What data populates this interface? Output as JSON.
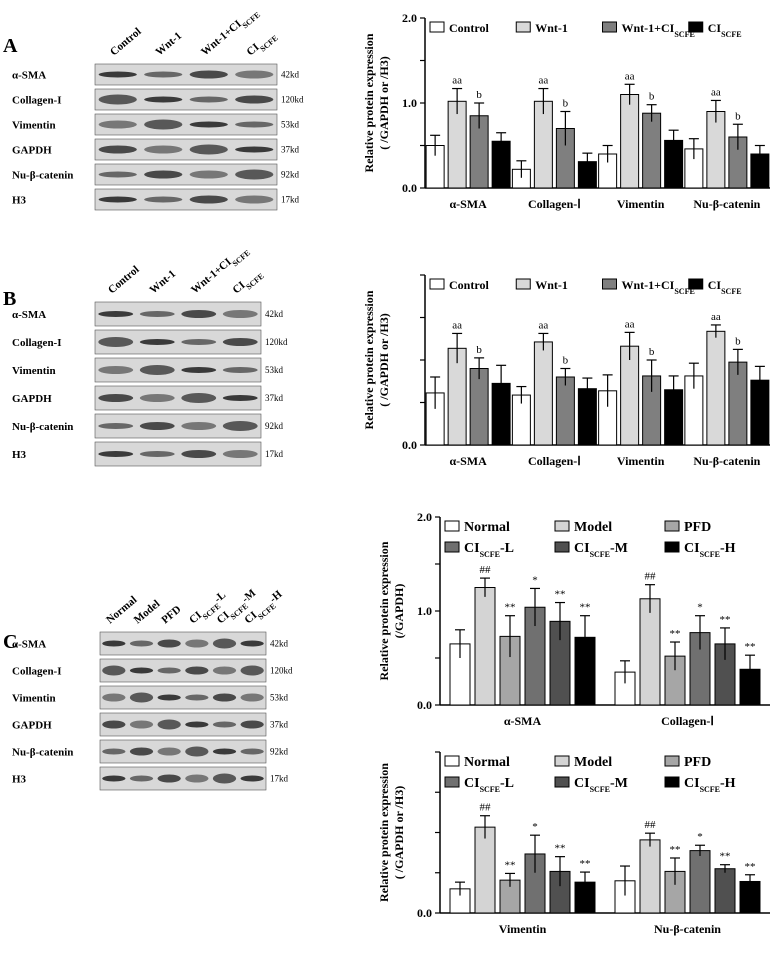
{
  "panels": [
    {
      "label": "A",
      "lanes": [
        "Control",
        "Wnt-1",
        {
          "text": "Wnt-1+CI",
          "sub": "SCFE"
        },
        {
          "text": "CI",
          "sub": "SCFE"
        }
      ],
      "rows": [
        {
          "name": "α-SMA",
          "size": "42kd"
        },
        {
          "name": "Collagen-I",
          "size": "120kd"
        },
        {
          "name": "Vimentin",
          "size": "53kd"
        },
        {
          "name": "GAPDH",
          "size": "37kd"
        },
        {
          "name": "Nu-β-catenin",
          "size": "92kd"
        },
        {
          "name": "H3",
          "size": "17kd"
        }
      ]
    },
    {
      "label": "B",
      "lanes": [
        "Control",
        "Wnt-1",
        {
          "text": "Wnt-1+CI",
          "sub": "SCFE"
        },
        {
          "text": "CI",
          "sub": "SCFE"
        }
      ],
      "rows": [
        {
          "name": "α-SMA",
          "size": "42kd"
        },
        {
          "name": "Collagen-I",
          "size": "120kd"
        },
        {
          "name": "Vimentin",
          "size": "53kd"
        },
        {
          "name": "GAPDH",
          "size": "37kd"
        },
        {
          "name": "Nu-β-catenin",
          "size": "92kd"
        },
        {
          "name": "H3",
          "size": "17kd"
        }
      ]
    },
    {
      "label": "C",
      "lanes": [
        "Normal",
        "Model",
        "PFD",
        {
          "text": "CI",
          "sub": "SCFE",
          "suffix": "-L"
        },
        {
          "text": "CI",
          "sub": "SCFE",
          "suffix": "-M"
        },
        {
          "text": "CI",
          "sub": "SCFE",
          "suffix": "-H"
        }
      ],
      "rows": [
        {
          "name": "α-SMA",
          "size": "42kd"
        },
        {
          "name": "Collagen-I",
          "size": "120kd"
        },
        {
          "name": "Vimentin",
          "size": "53kd"
        },
        {
          "name": "GAPDH",
          "size": "37kd"
        },
        {
          "name": "Nu-β-catenin",
          "size": "92kd"
        },
        {
          "name": "H3",
          "size": "17kd"
        }
      ]
    }
  ],
  "chart_data": [
    {
      "type": "bar",
      "ylabel": [
        "Relative protein expression",
        "( /GAPDH or /H3)"
      ],
      "categories": [
        "α-SMA",
        "Collagen-Ⅰ",
        "Vimentin",
        "Nu-β-catenin"
      ],
      "ylim": [
        0,
        2
      ],
      "yticks": [
        {
          "value": 0,
          "label": "0.0"
        },
        0.5,
        {
          "value": 1,
          "label": "1.0"
        },
        1.5,
        {
          "value": 2,
          "label": "2.0"
        }
      ],
      "legend": "top",
      "series": [
        {
          "name": "Control",
          "color": "#ffffff",
          "values": [
            0.5,
            0.22,
            0.4,
            0.46
          ],
          "errors": [
            0.12,
            0.1,
            0.1,
            0.12
          ]
        },
        {
          "name": "Wnt-1",
          "color": "#d9d9d9",
          "values": [
            1.02,
            1.02,
            1.1,
            0.9
          ],
          "errors": [
            0.15,
            0.15,
            0.12,
            0.13
          ],
          "labels": [
            "aa",
            "aa",
            "aa",
            "aa"
          ]
        },
        {
          "name": "Wnt-1+CI",
          "sub": "SCFE",
          "color": "#7f7f7f",
          "values": [
            0.85,
            0.7,
            0.88,
            0.6
          ],
          "errors": [
            0.15,
            0.2,
            0.1,
            0.15
          ],
          "labels": [
            "b",
            "b",
            "b",
            "b"
          ]
        },
        {
          "name": "CI",
          "sub": "SCFE",
          "color": "#000000",
          "values": [
            0.55,
            0.31,
            0.56,
            0.4
          ],
          "errors": [
            0.1,
            0.1,
            0.12,
            0.1
          ]
        }
      ]
    },
    {
      "type": "bar",
      "ylabel": [
        "Relative protein expression",
        "( /GAPDH or /H3)"
      ],
      "categories": [
        "α-SMA",
        "Collagen-Ⅰ",
        "Vimentin",
        "Nu-β-catenin"
      ],
      "ylim": [
        0,
        1.6
      ],
      "yticks": [
        {
          "value": 0,
          "label": "0.0"
        },
        0.4,
        0.8,
        1.2,
        1.6
      ],
      "legend": "top",
      "series": [
        {
          "name": "Control",
          "color": "#ffffff",
          "values": [
            0.49,
            0.47,
            0.51,
            0.65
          ],
          "errors": [
            0.15,
            0.08,
            0.15,
            0.12
          ]
        },
        {
          "name": "Wnt-1",
          "color": "#d9d9d9",
          "values": [
            0.91,
            0.97,
            0.93,
            1.07
          ],
          "errors": [
            0.14,
            0.08,
            0.13,
            0.06
          ],
          "labels": [
            "aa",
            "aa",
            "aa",
            "aa"
          ]
        },
        {
          "name": "Wnt-1+CI",
          "sub": "SCFE",
          "color": "#7f7f7f",
          "values": [
            0.72,
            0.64,
            0.65,
            0.78
          ],
          "errors": [
            0.1,
            0.08,
            0.15,
            0.12
          ],
          "labels": [
            "b",
            "b",
            "b",
            "b"
          ]
        },
        {
          "name": "CI",
          "sub": "SCFE",
          "color": "#000000",
          "values": [
            0.58,
            0.53,
            0.52,
            0.61
          ],
          "errors": [
            0.17,
            0.1,
            0.13,
            0.13
          ]
        }
      ]
    },
    {
      "type": "bar",
      "ylabel": [
        "Relative protein expression",
        "(/GAPDH)"
      ],
      "categories": [
        "α-SMA",
        "Collagen-Ⅰ"
      ],
      "ylim": [
        0,
        2
      ],
      "yticks": [
        {
          "value": 0,
          "label": "0.0"
        },
        0.5,
        {
          "value": 1,
          "label": "1.0"
        },
        1.5,
        {
          "value": 2,
          "label": "2.0"
        }
      ],
      "legend": "top",
      "series": [
        {
          "name": "Normal",
          "color": "#ffffff",
          "values": [
            0.65,
            0.35
          ],
          "errors": [
            0.15,
            0.12
          ]
        },
        {
          "name": "Model",
          "color": "#d4d4d4",
          "values": [
            1.25,
            1.13
          ],
          "errors": [
            0.1,
            0.15
          ],
          "labels": [
            "##",
            "##"
          ]
        },
        {
          "name": "PFD",
          "color": "#a6a6a6",
          "values": [
            0.73,
            0.52
          ],
          "errors": [
            0.22,
            0.15
          ],
          "labels": [
            "**",
            "**"
          ]
        },
        {
          "name": "CI",
          "sub": "SCFE",
          "suffix": "-L",
          "color": "#707070",
          "values": [
            1.04,
            0.77
          ],
          "errors": [
            0.2,
            0.18
          ],
          "labels": [
            "*",
            "*"
          ]
        },
        {
          "name": "CI",
          "sub": "SCFE",
          "suffix": "-M",
          "color": "#505050",
          "values": [
            0.89,
            0.65
          ],
          "errors": [
            0.2,
            0.17
          ],
          "labels": [
            "**",
            "**"
          ]
        },
        {
          "name": "CI",
          "sub": "SCFE",
          "suffix": "-H",
          "color": "#000000",
          "values": [
            0.72,
            0.38
          ],
          "errors": [
            0.23,
            0.15
          ],
          "labels": [
            "**",
            "**"
          ]
        }
      ]
    },
    {
      "type": "bar",
      "ylabel": [
        "Relative protein expression",
        "( /GAPDH or /H3)"
      ],
      "categories": [
        "Vimentin",
        "Nu-β-catenin"
      ],
      "ylim": [
        0,
        2.4
      ],
      "yticks": [
        {
          "value": 0,
          "label": "0.0"
        },
        0.6,
        1.2,
        1.8,
        2.4
      ],
      "legend": "top",
      "series": [
        {
          "name": "Normal",
          "color": "#ffffff",
          "values": [
            0.36,
            0.48
          ],
          "errors": [
            0.1,
            0.22
          ]
        },
        {
          "name": "Model",
          "color": "#d4d4d4",
          "values": [
            1.28,
            1.09
          ],
          "errors": [
            0.17,
            0.1
          ],
          "labels": [
            "##",
            "##"
          ]
        },
        {
          "name": "PFD",
          "color": "#a6a6a6",
          "values": [
            0.49,
            0.62
          ],
          "errors": [
            0.1,
            0.2
          ],
          "labels": [
            "**",
            "**"
          ]
        },
        {
          "name": "CI",
          "sub": "SCFE",
          "suffix": "-L",
          "color": "#707070",
          "values": [
            0.88,
            0.93
          ],
          "errors": [
            0.28,
            0.08
          ],
          "labels": [
            "*",
            "*"
          ]
        },
        {
          "name": "CI",
          "sub": "SCFE",
          "suffix": "-M",
          "color": "#505050",
          "values": [
            0.62,
            0.66
          ],
          "errors": [
            0.22,
            0.06
          ],
          "labels": [
            "**",
            "**"
          ]
        },
        {
          "name": "CI",
          "sub": "SCFE",
          "suffix": "-H",
          "color": "#000000",
          "values": [
            0.46,
            0.47
          ],
          "errors": [
            0.15,
            0.1
          ],
          "labels": [
            "**",
            "**"
          ]
        }
      ]
    }
  ]
}
